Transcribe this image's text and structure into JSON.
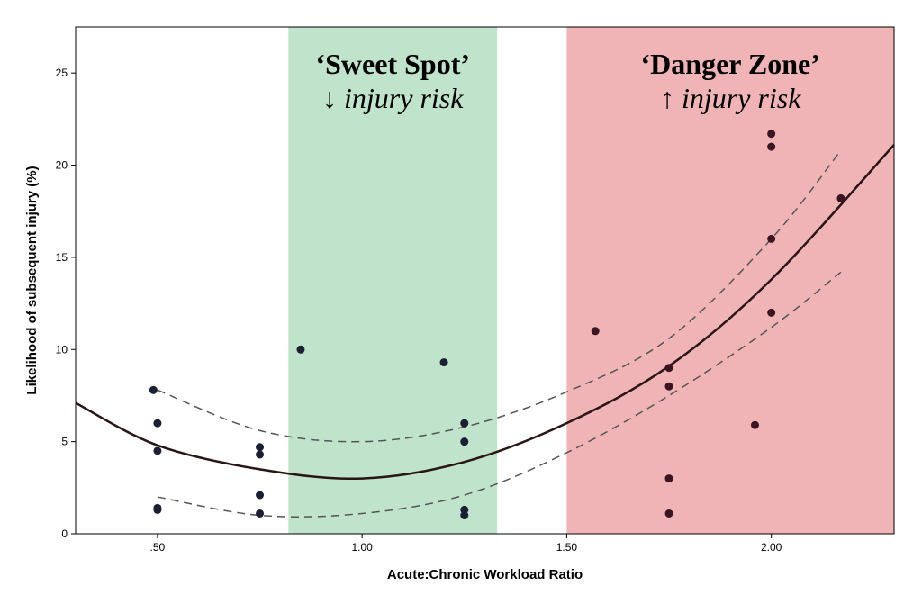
{
  "chart_data": {
    "type": "scatter",
    "xlabel": "Acute:Chronic Workload Ratio",
    "ylabel": "Likelihood of subsequent injury (%)",
    "xlim": [
      0.3,
      2.3
    ],
    "ylim": [
      0,
      27.5
    ],
    "x_ticks": [
      {
        "value": 0.5,
        "label": ".50"
      },
      {
        "value": 1.0,
        "label": "1.00"
      },
      {
        "value": 1.5,
        "label": "1.50"
      },
      {
        "value": 2.0,
        "label": "2.00"
      }
    ],
    "y_ticks": [
      {
        "value": 0,
        "label": "0"
      },
      {
        "value": 5,
        "label": "5"
      },
      {
        "value": 10,
        "label": "10"
      },
      {
        "value": 15,
        "label": "15"
      },
      {
        "value": 20,
        "label": "20"
      },
      {
        "value": 25,
        "label": "25"
      }
    ],
    "zones": [
      {
        "id": "sweet-spot",
        "x_range": [
          0.82,
          1.33
        ],
        "color": "#bfe3cb",
        "title": "‘Sweet Spot’",
        "subtitle": "↓ injury risk"
      },
      {
        "id": "danger-zone",
        "x_range": [
          1.5,
          2.3
        ],
        "color": "#f0b4b6",
        "title": "‘Danger Zone’",
        "subtitle": "↑ injury risk"
      }
    ],
    "points": [
      {
        "x": 0.49,
        "y": 7.8
      },
      {
        "x": 0.5,
        "y": 6.0
      },
      {
        "x": 0.5,
        "y": 4.5
      },
      {
        "x": 0.5,
        "y": 1.4
      },
      {
        "x": 0.5,
        "y": 1.3
      },
      {
        "x": 0.75,
        "y": 4.7
      },
      {
        "x": 0.75,
        "y": 4.3
      },
      {
        "x": 0.75,
        "y": 2.1
      },
      {
        "x": 0.75,
        "y": 1.1
      },
      {
        "x": 0.85,
        "y": 10.0
      },
      {
        "x": 1.2,
        "y": 9.3
      },
      {
        "x": 1.25,
        "y": 6.0
      },
      {
        "x": 1.25,
        "y": 5.0
      },
      {
        "x": 1.25,
        "y": 1.3
      },
      {
        "x": 1.25,
        "y": 1.0
      },
      {
        "x": 1.57,
        "y": 11.0
      },
      {
        "x": 1.75,
        "y": 9.0
      },
      {
        "x": 1.75,
        "y": 8.0
      },
      {
        "x": 1.75,
        "y": 3.0
      },
      {
        "x": 1.75,
        "y": 1.1
      },
      {
        "x": 1.96,
        "y": 5.9
      },
      {
        "x": 2.0,
        "y": 21.7
      },
      {
        "x": 2.0,
        "y": 21.0
      },
      {
        "x": 2.0,
        "y": 16.0
      },
      {
        "x": 2.0,
        "y": 12.0
      },
      {
        "x": 2.17,
        "y": 18.2
      }
    ],
    "fit": {
      "x": [
        0.3,
        0.5,
        0.75,
        1.0,
        1.25,
        1.5,
        1.75,
        2.0,
        2.3
      ],
      "y": [
        7.1,
        4.8,
        3.5,
        3.0,
        3.9,
        6.0,
        9.1,
        13.8,
        21.1
      ]
    },
    "ci_upper": {
      "x": [
        0.5,
        0.75,
        1.0,
        1.25,
        1.5,
        1.75,
        2.0,
        2.17
      ],
      "y": [
        7.8,
        5.6,
        5.0,
        5.8,
        7.7,
        10.6,
        16.0,
        20.8
      ]
    },
    "ci_lower": {
      "x": [
        0.5,
        0.75,
        1.0,
        1.25,
        1.5,
        1.75,
        2.0,
        2.17
      ],
      "y": [
        2.0,
        1.0,
        1.1,
        2.1,
        4.4,
        7.5,
        11.2,
        14.2
      ]
    },
    "colors": {
      "points": "#1a1f33",
      "fit": "#2a1515",
      "ci": "#555555",
      "sweet_spot": "#bfe3cb",
      "danger_zone": "#f0b4b6"
    },
    "grid": false,
    "legend": "none"
  }
}
